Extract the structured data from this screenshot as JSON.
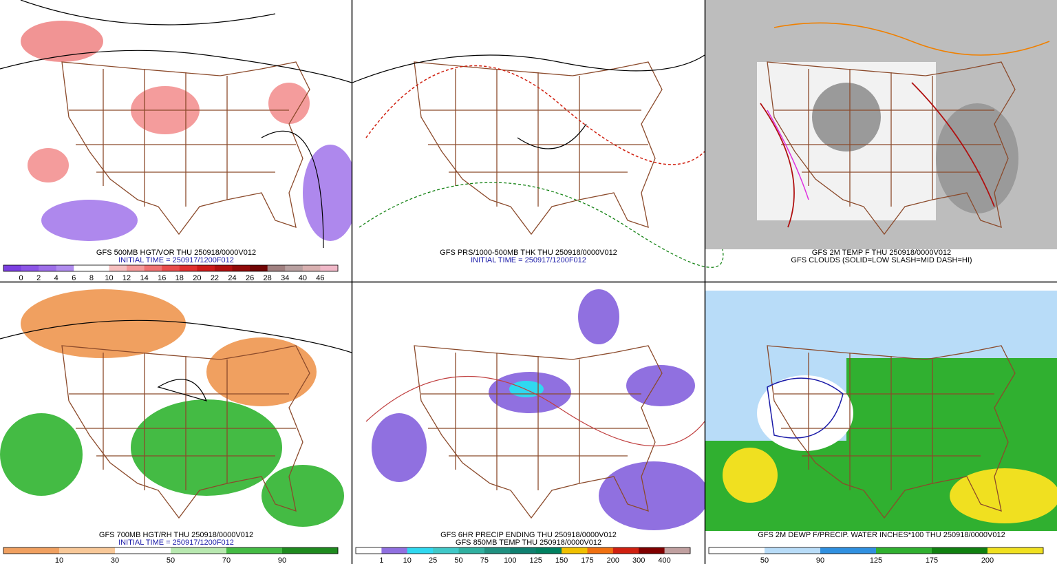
{
  "panels": [
    {
      "captions": [
        {
          "text": "GFS 500MB HGT/VOR THU 250918/0000V012",
          "color": "#000000"
        },
        {
          "text": "INITIAL TIME = 250917/1200F012",
          "color": "#1a1aa8"
        }
      ],
      "colorbar": {
        "labels": [
          "0",
          "2",
          "4",
          "6",
          "8",
          "10",
          "12",
          "14",
          "16",
          "18",
          "20",
          "22",
          "24",
          "26",
          "28",
          "34",
          "40",
          "46"
        ],
        "colors": [
          "#7b3fe0",
          "#8c55e6",
          "#9d6ee8",
          "#b08cee",
          "#ffffff",
          "#ffffff",
          "#f6c0c0",
          "#f49a9a",
          "#ef7272",
          "#e84c4c",
          "#e03030",
          "#cc1a1a",
          "#b01010",
          "#900a0a",
          "#700505",
          "#a08080",
          "#b8a0a0",
          "#d8b0b0",
          "#f0b8c8"
        ]
      }
    },
    {
      "captions": [
        {
          "text": "GFS PRS/1000-500MB THK THU 250918/0000V012",
          "color": "#000000"
        },
        {
          "text": "INITIAL TIME = 250917/1200F012",
          "color": "#1a1aa8"
        }
      ]
    },
    {
      "captions": [
        {
          "text": "GFS 2M TEMP F THU 250918/0000V012",
          "color": "#000000"
        },
        {
          "text": "GFS CLOUDS (SOLID=LOW SLASH=MID DASH=HI)",
          "color": "#000000"
        }
      ]
    },
    {
      "captions": [
        {
          "text": "GFS 700MB HGT/RH THU 250918/0000V012",
          "color": "#000000"
        },
        {
          "text": "INITIAL TIME = 250917/1200F012",
          "color": "#1a1aa8"
        }
      ],
      "colorbar": {
        "labels": [
          "10",
          "30",
          "50",
          "70",
          "90"
        ],
        "colors": [
          "#f0a060",
          "#f8c898",
          "#ffffff",
          "#b8e8b0",
          "#44bb44",
          "#1e8a1e"
        ]
      }
    },
    {
      "captions": [
        {
          "text": "GFS 6HR PRECIP ENDING THU 250918/0000V012",
          "color": "#000000"
        },
        {
          "text": "GFS 850MB TEMP THU 250918/0000V012",
          "color": "#000000"
        }
      ],
      "colorbar": {
        "labels": [
          "1",
          "10",
          "25",
          "50",
          "75",
          "100",
          "125",
          "150",
          "175",
          "200",
          "300",
          "400"
        ],
        "colors": [
          "#ffffff",
          "#9070e0",
          "#30d8f0",
          "#40c8c8",
          "#30b0a0",
          "#209080",
          "#108070",
          "#008060",
          "#f0c000",
          "#f07010",
          "#d02010",
          "#800000",
          "#c0a0a0"
        ]
      }
    },
    {
      "captions": [
        {
          "text": "GFS 2M DEWP F/PRECIP. WATER INCHES*100 THU 250918/0000V012",
          "color": "#000000"
        }
      ],
      "colorbar": {
        "labels": [
          "50",
          "90",
          "125",
          "175",
          "200"
        ],
        "colors": [
          "#ffffff",
          "#b8dcf8",
          "#3090e0",
          "#30b030",
          "#108010",
          "#f0e020"
        ]
      }
    }
  ]
}
